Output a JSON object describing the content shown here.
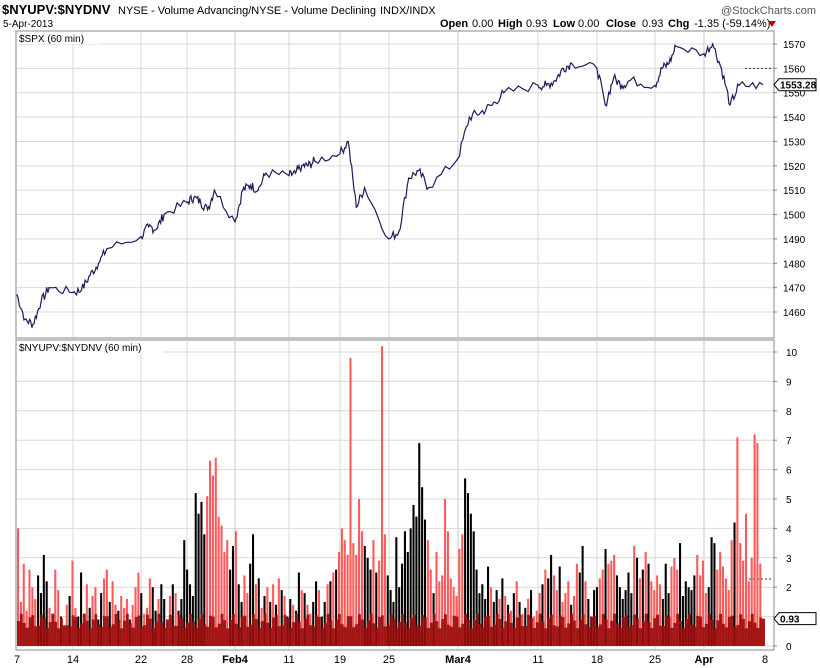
{
  "header": {
    "symbol": "$NYUPV:$NYDNV",
    "description": "NYSE - Volume Advancing/NYSE - Volume Declining",
    "exchange": "INDX/INDX",
    "watermark": "@StockCharts.com",
    "date": "5-Apr-2013",
    "open_label": "Open",
    "open": "0.00",
    "high_label": "High",
    "high": "0.93",
    "low_label": "Low",
    "low": "0.00",
    "close_label": "Close",
    "close": "0.93",
    "chg_label": "Chg",
    "chg": "-1.35 (-59.14%)",
    "chg_arrow": "down-triangle-icon"
  },
  "colors": {
    "price_line": "#1c1c5c",
    "up_bar": "#ff5a5a",
    "down_bar": "#000000",
    "base_fill": "#9b0b0b",
    "grid": "#d9d9d9",
    "frame": "#888888",
    "down_arrow": "#c00000"
  },
  "chart_data": [
    {
      "type": "line",
      "title": "$SPX (60 min)",
      "ylim": [
        1450,
        1575
      ],
      "yticks": [
        1460,
        1470,
        1480,
        1490,
        1500,
        1510,
        1520,
        1530,
        1540,
        1550,
        1560,
        1570
      ],
      "last_value_label": "1553.28",
      "last_value": 1553.28,
      "reference_line": 1560,
      "x_ticks": [
        "7",
        "14",
        "22",
        "28",
        "Feb4",
        "11",
        "19",
        "25",
        "Mar4",
        "11",
        "18",
        "25",
        "Apr",
        "8"
      ],
      "x_start": "2013-01-07",
      "x_end": "2013-04-08",
      "series": [
        {
          "x": [
            "2013-01-07",
            "2013-01-08",
            "2013-01-09",
            "2013-01-10",
            "2013-01-11",
            "2013-01-14",
            "2013-01-15",
            "2013-01-16",
            "2013-01-17",
            "2013-01-18",
            "2013-01-22",
            "2013-01-23",
            "2013-01-24",
            "2013-01-25",
            "2013-01-28",
            "2013-01-29",
            "2013-01-30",
            "2013-01-31",
            "2013-02-01",
            "2013-02-04",
            "2013-02-05",
            "2013-02-06",
            "2013-02-07",
            "2013-02-08",
            "2013-02-11",
            "2013-02-12",
            "2013-02-13",
            "2013-02-14",
            "2013-02-15",
            "2013-02-19",
            "2013-02-20",
            "2013-02-21",
            "2013-02-22",
            "2013-02-25",
            "2013-02-26",
            "2013-02-27",
            "2013-02-28",
            "2013-03-01",
            "2013-03-04",
            "2013-03-05",
            "2013-03-06",
            "2013-03-07",
            "2013-03-08",
            "2013-03-11",
            "2013-03-12",
            "2013-03-13",
            "2013-03-14",
            "2013-03-15",
            "2013-03-18",
            "2013-03-19",
            "2013-03-20",
            "2013-03-21",
            "2013-03-22",
            "2013-03-25",
            "2013-03-26",
            "2013-03-27",
            "2013-03-28",
            "2013-04-01",
            "2013-04-02",
            "2013-04-03",
            "2013-04-04",
            "2013-04-05"
          ],
          "values": [
            1467,
            1457,
            1455,
            1464,
            1470,
            1468,
            1469,
            1475,
            1480,
            1486,
            1491,
            1495,
            1494,
            1500,
            1505,
            1507,
            1505,
            1502,
            1510,
            1497,
            1510,
            1512,
            1510,
            1517,
            1516,
            1517,
            1520,
            1520,
            1522,
            1525,
            1530,
            1503,
            1511,
            1490,
            1493,
            1515,
            1518,
            1511,
            1523,
            1540,
            1542,
            1545,
            1550,
            1553,
            1553,
            1555,
            1560,
            1562,
            1560,
            1545,
            1556,
            1553,
            1555,
            1553,
            1560,
            1562,
            1569,
            1566,
            1570,
            1560,
            1545,
            1553
          ]
        }
      ]
    },
    {
      "type": "bar",
      "title": "$NYUPV:$NYDNV (60 min)",
      "ylim": [
        0,
        10.2
      ],
      "yticks": [
        0,
        1,
        2,
        3,
        4,
        5,
        6,
        7,
        8,
        9,
        10
      ],
      "last_value_label": "0.93",
      "last_value": 0.93,
      "reference_line": 2.28,
      "x_ticks": [
        "7",
        "14",
        "22",
        "28",
        "Feb4",
        "11",
        "19",
        "25",
        "Mar4",
        "11",
        "18",
        "25",
        "Apr",
        "8"
      ],
      "series": [
        {
          "name": "NYUPV:NYDNV",
          "values": [
            4.0,
            1.5,
            2.8,
            1.2,
            2.6,
            2.0,
            1.6,
            2.4,
            1.8,
            3.1,
            2.2,
            1.3,
            1.1,
            2.6,
            1.9,
            1.0,
            0.7,
            1.4,
            1.7,
            2.9,
            1.3,
            1.0,
            2.5,
            1.1,
            2.1,
            1.3,
            1.7,
            2.0,
            0.9,
            1.8,
            2.3,
            2.6,
            1.5,
            2.2,
            1.4,
            1.2,
            1.7,
            1.3,
            1.6,
            0.9,
            1.4,
            2.0,
            2.5,
            1.8,
            1.1,
            1.3,
            2.3,
            2.0,
            1.2,
            1.6,
            2.1,
            1.6,
            0.9,
            1.7,
            2.1,
            1.8,
            1.2,
            1.6,
            3.6,
            2.6,
            2.1,
            1.7,
            5.2,
            4.5,
            4.9,
            3.8,
            5.1,
            6.3,
            5.8,
            6.4,
            4.4,
            4.1,
            3.2,
            3.6,
            2.6,
            3.4,
            3.9,
            2.1,
            1.5,
            2.4,
            1.8,
            2.8,
            3.8,
            2.1,
            2.3,
            1.3,
            1.7,
            2.0,
            1.5,
            2.1,
            1.4,
            2.3,
            1.9,
            1.7,
            1.0,
            1.6,
            1.4,
            1.2,
            2.5,
            1.9,
            1.8,
            1.4,
            1.1,
            1.5,
            2.2,
            1.9,
            1.0,
            1.5,
            2.1,
            2.2,
            2.5,
            2.6,
            3.2,
            4.0,
            3.6,
            3.1,
            9.8,
            3.5,
            3.1,
            5.0,
            3.9,
            3.4,
            3.0,
            2.6,
            3.6,
            2.5,
            2.9,
            10.2,
            3.8,
            2.4,
            1.9,
            1.5,
            3.7,
            2.0,
            2.8,
            3.9,
            3.2,
            4.0,
            4.8,
            4.4,
            6.9,
            5.4,
            4.3,
            3.6,
            2.6,
            1.8,
            3.2,
            2.2,
            2.4,
            5.0,
            3.9,
            2.3,
            2.0,
            1.7,
            3.3,
            3.8,
            5.7,
            5.2,
            4.5,
            3.9,
            2.6,
            1.8,
            2.1,
            1.6,
            2.7,
            2.0,
            1.5,
            1.9,
            1.6,
            2.3,
            1.7,
            1.4,
            1.2,
            1.8,
            2.2,
            1.5,
            1.1,
            1.3,
            1.6,
            1.9,
            1.0,
            1.2,
            1.8,
            2.1,
            2.6,
            2.3,
            3.1,
            2.4,
            1.9,
            2.7,
            1.5,
            1.8,
            2.2,
            1.4,
            1.7,
            2.8,
            2.5,
            3.4,
            2.2,
            1.6,
            1.0,
            1.9,
            2.0,
            2.3,
            2.6,
            3.3,
            2.8,
            2.9,
            3.1,
            2.4,
            2.0,
            1.6,
            1.9,
            2.5,
            1.8,
            3.4,
            3.0,
            2.3,
            2.6,
            3.2,
            2.8,
            2.2,
            1.9,
            2.4,
            2.1,
            1.6,
            2.8,
            1.8,
            2.7,
            3.0,
            2.6,
            3.5,
            1.7,
            2.2,
            2.0,
            1.9,
            2.4,
            3.1,
            2.4,
            2.9,
            1.8,
            2.0,
            3.7,
            3.5,
            2.6,
            3.2,
            2.7,
            2.3,
            1.9,
            3.6,
            4.2,
            7.1,
            3.5,
            2.9,
            4.5,
            2.2,
            3.0,
            7.2,
            6.9,
            2.8,
            0.93
          ],
          "down": [
            0,
            0,
            0,
            0,
            0,
            0,
            0,
            1,
            1,
            1,
            1,
            0,
            0,
            0,
            0,
            1,
            0,
            0,
            1,
            0,
            0,
            1,
            1,
            0,
            0,
            1,
            0,
            0,
            1,
            1,
            0,
            0,
            1,
            0,
            0,
            1,
            0,
            0,
            0,
            1,
            0,
            0,
            0,
            1,
            0,
            0,
            0,
            1,
            1,
            0,
            1,
            1,
            0,
            0,
            1,
            0,
            1,
            1,
            1,
            1,
            1,
            1,
            1,
            1,
            1,
            1,
            0,
            0,
            0,
            0,
            0,
            0,
            0,
            0,
            1,
            1,
            0,
            1,
            1,
            0,
            0,
            1,
            1,
            0,
            1,
            0,
            1,
            0,
            1,
            0,
            1,
            0,
            1,
            0,
            1,
            1,
            0,
            1,
            1,
            0,
            1,
            0,
            0,
            1,
            1,
            0,
            1,
            1,
            0,
            1,
            0,
            1,
            0,
            0,
            0,
            0,
            0,
            0,
            0,
            0,
            0,
            1,
            1,
            1,
            0,
            1,
            0,
            0,
            0,
            1,
            1,
            1,
            1,
            1,
            1,
            1,
            1,
            1,
            1,
            1,
            1,
            1,
            1,
            0,
            0,
            1,
            0,
            0,
            0,
            0,
            0,
            0,
            0,
            0,
            0,
            0,
            1,
            1,
            1,
            1,
            1,
            1,
            1,
            1,
            1,
            0,
            1,
            1,
            0,
            1,
            0,
            1,
            0,
            1,
            0,
            1,
            0,
            1,
            0,
            1,
            0,
            0,
            0,
            1,
            0,
            1,
            1,
            0,
            0,
            1,
            0,
            0,
            0,
            1,
            0,
            0,
            1,
            1,
            0,
            1,
            1,
            1,
            1,
            0,
            0,
            1,
            0,
            0,
            0,
            1,
            1,
            1,
            1,
            1,
            1,
            0,
            1,
            0,
            1,
            0,
            1,
            0,
            0,
            0,
            0,
            1,
            1,
            1,
            0,
            0,
            0,
            1,
            1,
            1,
            1,
            1,
            1,
            0,
            0,
            0,
            0,
            1,
            1,
            1,
            0,
            0,
            0,
            0,
            0,
            0,
            1,
            0,
            0,
            0,
            0,
            0,
            0
          ]
        }
      ]
    }
  ]
}
